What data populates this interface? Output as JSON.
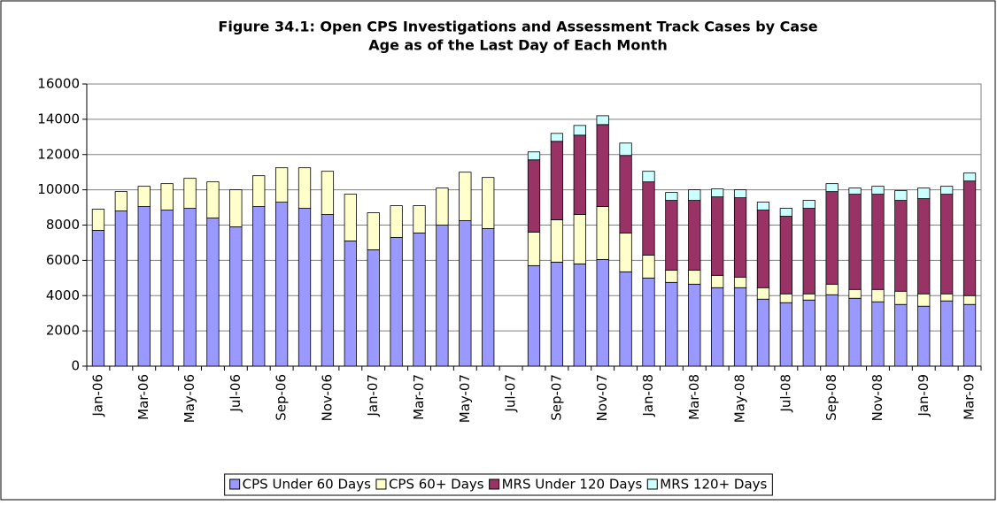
{
  "chart_data": {
    "type": "stacked_bar",
    "title": [
      "Figure 34.1: Open CPS Investigations and Assessment Track Cases by Case",
      "Age as of the Last Day of Each Month"
    ],
    "categories": [
      "Jan-06",
      null,
      "Mar-06",
      null,
      "May-06",
      null,
      "Jul-06",
      null,
      "Sep-06",
      null,
      "Nov-06",
      null,
      "Jan-07",
      null,
      "Mar-07",
      null,
      "May-07",
      null,
      "Jul-07",
      null,
      "Sep-07",
      null,
      "Nov-07",
      null,
      "Jan-08",
      null,
      "Mar-08",
      null,
      "May-08",
      null,
      "Jul-08",
      null,
      "Sep-08",
      null,
      "Nov-08",
      null,
      "Jan-09",
      null,
      "Mar-09"
    ],
    "series": [
      {
        "name": "CPS Under 60 Days",
        "color": "#9999ff",
        "values": [
          7700,
          8800,
          9050,
          8850,
          8950,
          8400,
          7900,
          9050,
          9300,
          8950,
          8600,
          7100,
          6600,
          7300,
          7550,
          8000,
          8250,
          7800,
          null,
          5700,
          5900,
          5800,
          6050,
          5350,
          5000,
          4750,
          4650,
          4450,
          4450,
          3800,
          3600,
          3750,
          4050,
          3850,
          3650,
          3500,
          3400,
          3700,
          3500
        ]
      },
      {
        "name": "CPS 60+ Days",
        "color": "#ffffcc",
        "values": [
          1200,
          1100,
          1150,
          1500,
          1700,
          2050,
          2100,
          1750,
          1950,
          2300,
          2450,
          2650,
          2100,
          1800,
          1550,
          2100,
          2750,
          2900,
          null,
          1900,
          2400,
          2800,
          3000,
          2200,
          1300,
          700,
          800,
          700,
          600,
          650,
          500,
          350,
          600,
          500,
          700,
          750,
          700,
          400,
          500
        ]
      },
      {
        "name": "MRS Under 120 Days",
        "color": "#993366",
        "values": [
          null,
          null,
          null,
          null,
          null,
          null,
          null,
          null,
          null,
          null,
          null,
          null,
          null,
          null,
          null,
          null,
          null,
          null,
          null,
          4100,
          4450,
          4500,
          4650,
          4400,
          4150,
          3950,
          3950,
          4450,
          4500,
          4400,
          4400,
          4850,
          5250,
          5400,
          5400,
          5150,
          5400,
          5650,
          6500
        ]
      },
      {
        "name": "MRS 120+ Days",
        "color": "#ccffff",
        "values": [
          null,
          null,
          null,
          null,
          null,
          null,
          null,
          null,
          null,
          null,
          null,
          null,
          null,
          null,
          null,
          null,
          null,
          null,
          null,
          450,
          450,
          550,
          500,
          700,
          600,
          450,
          600,
          450,
          450,
          450,
          450,
          450,
          450,
          350,
          450,
          550,
          600,
          450,
          450
        ]
      }
    ],
    "ylim": [
      0,
      16000
    ],
    "yticks": [
      0,
      2000,
      4000,
      6000,
      8000,
      10000,
      12000,
      14000,
      16000
    ],
    "grid": true,
    "legend": "bottom"
  }
}
